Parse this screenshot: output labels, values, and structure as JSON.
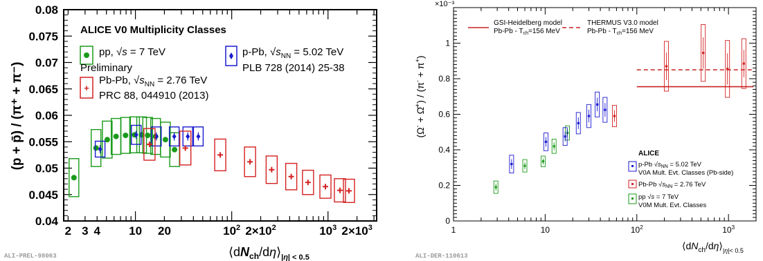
{
  "chart_data": [
    {
      "type": "scatter",
      "xscale": "log",
      "ylabel": "(p + p̄) / (π⁺ + π⁻)",
      "xlabel": "⟨dNch/dη⟩|η| < 0.5",
      "xlim": [
        1.8,
        3200
      ],
      "ylim": [
        0.04,
        0.08
      ],
      "xtick_labels": [
        "2",
        "3",
        "4",
        "10",
        "20",
        "10²",
        "2×10²",
        "10³",
        "2×10³"
      ],
      "ytick_labels": [
        "0.04",
        "0.045",
        "0.05",
        "0.055",
        "0.06",
        "0.065",
        "0.07",
        "0.075",
        "0.08"
      ],
      "legend_title": "ALICE V0 Multiplicity Classes",
      "legend_entries": [
        {
          "label": "pp, √s = 7 TeV",
          "sub": "Preliminary"
        },
        {
          "label": "p-Pb, √sNN = 5.02 TeV",
          "sub": "PLB 728 (2014) 25-38"
        },
        {
          "label": "Pb-Pb, √sNN = 2.76 TeV",
          "sub": "PRC 88, 044910 (2013)"
        }
      ],
      "footer": "ALI-PREL-98063",
      "series": [
        {
          "name": "pp, √s = 7 TeV",
          "color": "#1a9a1a",
          "marker": "circle",
          "points": [
            [
              2.3,
              0.0482,
              0.0036
            ],
            [
              3.9,
              0.0538,
              0.0035
            ],
            [
              5.1,
              0.0554,
              0.0035
            ],
            [
              6.3,
              0.056,
              0.0034
            ],
            [
              7.9,
              0.0562,
              0.0034
            ],
            [
              9.8,
              0.0563,
              0.0034
            ],
            [
              11.6,
              0.0563,
              0.0034
            ],
            [
              13.4,
              0.0562,
              0.0034
            ],
            [
              16.2,
              0.056,
              0.0034
            ],
            [
              20.5,
              0.0554,
              0.0033
            ],
            [
              25.5,
              0.0535,
              0.0032
            ]
          ]
        },
        {
          "name": "p-Pb, √sNN = 5.02 TeV",
          "color": "#1a1ad0",
          "marker": "diamond",
          "points": [
            [
              4.3,
              0.0536,
              0.0015
            ],
            [
              10.2,
              0.0563,
              0.0018
            ],
            [
              16.5,
              0.056,
              0.0018
            ],
            [
              25.3,
              0.056,
              0.0018
            ],
            [
              35.0,
              0.056,
              0.0018
            ],
            [
              45.0,
              0.056,
              0.0018
            ]
          ]
        },
        {
          "name": "Pb-Pb, √sNN = 2.76 TeV",
          "color": "#d42020",
          "marker": "cross",
          "points": [
            [
              14,
              0.0545,
              0.003
            ],
            [
              33,
              0.0538,
              0.0032
            ],
            [
              76,
              0.0525,
              0.003
            ],
            [
              155,
              0.0512,
              0.0028
            ],
            [
              260,
              0.0497,
              0.0026
            ],
            [
              415,
              0.0484,
              0.0025
            ],
            [
              620,
              0.0473,
              0.0023
            ],
            [
              940,
              0.0465,
              0.0022
            ],
            [
              1330,
              0.0458,
              0.0022
            ],
            [
              1650,
              0.0457,
              0.0022
            ]
          ]
        }
      ]
    },
    {
      "type": "scatter",
      "xscale": "log",
      "ylabel": "(Ω⁻ + Ω̄⁺) / (π⁻ + π⁺)",
      "xlabel": "⟨dNch/dη⟩|η|< 0.5",
      "yexp": "×10⁻³",
      "xlim": [
        1,
        2000
      ],
      "ylim": [
        0,
        1.2
      ],
      "xtick_labels": [
        "1",
        "10",
        "10²",
        "10³"
      ],
      "ytick_labels": [
        "0",
        "0.2",
        "0.4",
        "0.6",
        "0.8",
        "1"
      ],
      "legend_title": "ALICE",
      "legend_entries": [
        {
          "label": "p-Pb √sNN = 5.02 TeV",
          "sub": "V0A Mult. Evt. Classes (Pb-side)"
        },
        {
          "label": "Pb-Pb √sNN = 2.76 TeV",
          "sub": ""
        },
        {
          "label": "pp √s = 7 TeV",
          "sub": "V0M Mult. Evt. Classes"
        }
      ],
      "model_entries": [
        {
          "label": "GSI-Heidelberg model",
          "sub": "Pb-Pb - Tch=156 MeV",
          "value": 0.755,
          "color": "#c82020",
          "dash": "none"
        },
        {
          "label": "THERMUS V3.0 model",
          "sub": "Pb-Pb - Tch=156 MeV",
          "value": 0.85,
          "color": "#c82020",
          "dash": "6,4"
        }
      ],
      "footer": "ALI-DER-110613",
      "series": [
        {
          "name": "pp √s = 7 TeV",
          "color": "#1a9a1a",
          "marker": "square",
          "points": [
            [
              2.9,
              0.19,
              0.035
            ],
            [
              6.0,
              0.31,
              0.035
            ],
            [
              9.5,
              0.335,
              0.03
            ],
            [
              12.5,
              0.42,
              0.04
            ],
            [
              17.5,
              0.495,
              0.04
            ]
          ]
        },
        {
          "name": "p-Pb √sNN = 5.02 TeV",
          "color": "#1a1ad0",
          "marker": "square",
          "points": [
            [
              4.3,
              0.32,
              0.05
            ],
            [
              10.2,
              0.445,
              0.05
            ],
            [
              16.5,
              0.475,
              0.05
            ],
            [
              23,
              0.55,
              0.06
            ],
            [
              30,
              0.59,
              0.065
            ],
            [
              37,
              0.655,
              0.07
            ],
            [
              45,
              0.625,
              0.07
            ]
          ]
        },
        {
          "name": "Pb-Pb √sNN = 2.76 TeV",
          "color": "#d42020",
          "marker": "square",
          "points": [
            [
              57,
              0.59,
              0.06
            ],
            [
              210,
              0.87,
              0.14
            ],
            [
              530,
              0.945,
              0.16
            ],
            [
              975,
              0.855,
              0.16
            ],
            [
              1470,
              0.885,
              0.14
            ]
          ]
        }
      ]
    }
  ]
}
